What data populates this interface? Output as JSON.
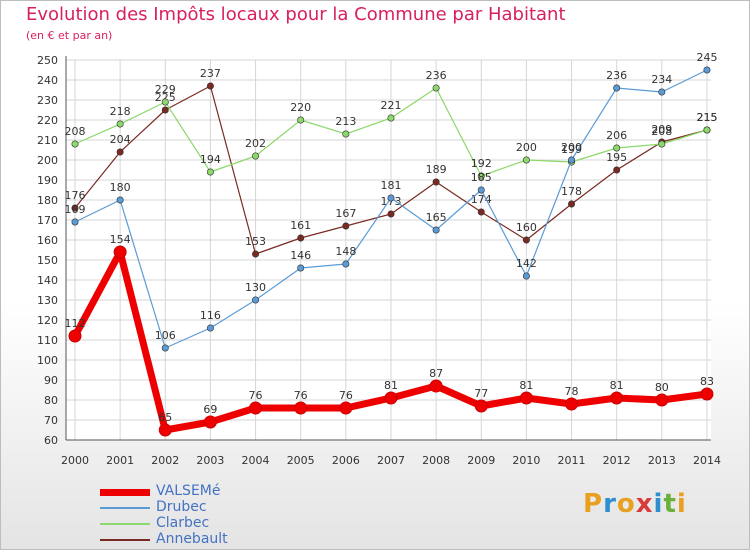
{
  "title": "Evolution des Impôts locaux pour la Commune par Habitant",
  "subtitle": "(en € et par an)",
  "logo": [
    "P",
    "r",
    "o",
    "x",
    "i",
    "t",
    "i"
  ],
  "logo_colors": [
    "#e8a021",
    "#2e8fd0",
    "#e8a021",
    "#d93a3a",
    "#2e8fd0",
    "#6ab03a",
    "#e8a021"
  ],
  "chart_data": {
    "type": "line",
    "title": "Evolution des Impôts locaux pour la Commune par Habitant",
    "subtitle": "(en € et par an)",
    "x": [
      "2000",
      "2001",
      "2002",
      "2003",
      "2004",
      "2005",
      "2006",
      "2007",
      "2008",
      "2009",
      "2010",
      "2011",
      "2012",
      "2013",
      "2014"
    ],
    "ylim": [
      60,
      250
    ],
    "yticks": [
      60,
      70,
      80,
      90,
      100,
      110,
      120,
      130,
      140,
      150,
      160,
      170,
      180,
      190,
      200,
      210,
      220,
      230,
      240,
      250
    ],
    "grid": true,
    "legend_position": "bottom-left",
    "series": [
      {
        "name": "VALSEMé",
        "color": "#ee0000",
        "values": [
          112,
          154,
          65,
          69,
          76,
          76,
          76,
          81,
          87,
          77,
          81,
          78,
          81,
          80,
          83
        ]
      },
      {
        "name": "Drubec",
        "color": "#5b9bd5",
        "values": [
          169,
          180,
          106,
          116,
          130,
          146,
          148,
          181,
          165,
          185,
          142,
          200,
          236,
          234,
          245
        ]
      },
      {
        "name": "Clarbec",
        "color": "#8cd86a",
        "values": [
          208,
          218,
          229,
          194,
          202,
          220,
          213,
          221,
          236,
          192,
          200,
          199,
          206,
          208,
          215
        ]
      },
      {
        "name": "Annebault",
        "color": "#7a2a22",
        "values": [
          176,
          204,
          225,
          237,
          153,
          161,
          167,
          173,
          189,
          174,
          160,
          178,
          195,
          209,
          215
        ]
      }
    ]
  }
}
